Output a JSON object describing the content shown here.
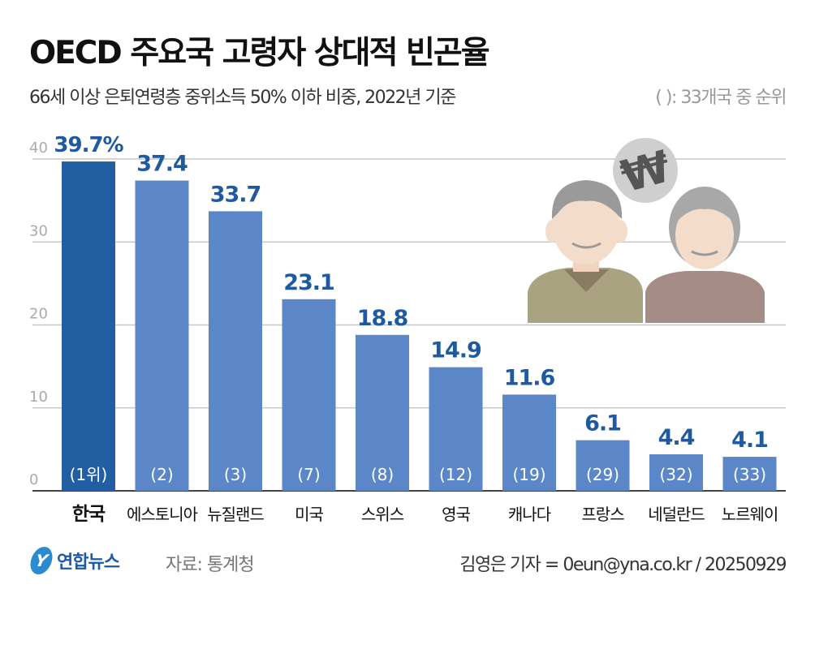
{
  "header": {
    "title": "OECD 주요국 고령자 상대적 빈곤율",
    "subtitle": "66세 이상 은퇴연령층 중위소득 50% 이하 비중, 2022년 기준",
    "note": "( ): 33개국 중 순위"
  },
  "footer": {
    "logo_text": "연합뉴스",
    "logo_letter": "Y",
    "source": "자료: 통계청",
    "credit": "김영은 기자 = 0eun@yna.co.kr / 20250929"
  },
  "illustration": {
    "coin_symbol": "₩"
  },
  "chart_data": {
    "type": "bar",
    "categories": [
      "한국",
      "에스토니아",
      "뉴질랜드",
      "미국",
      "스위스",
      "영국",
      "캐나다",
      "프랑스",
      "네덜란드",
      "노르웨이"
    ],
    "values": [
      39.7,
      37.4,
      33.7,
      23.1,
      18.8,
      14.9,
      11.6,
      6.1,
      4.4,
      4.1
    ],
    "value_labels": [
      "39.7%",
      "37.4",
      "33.7",
      "23.1",
      "18.8",
      "14.9",
      "11.6",
      "6.1",
      "4.4",
      "4.1"
    ],
    "ranks": [
      "(1위)",
      "(2)",
      "(3)",
      "(7)",
      "(8)",
      "(12)",
      "(19)",
      "(29)",
      "(32)",
      "(33)"
    ],
    "highlight_index": 0,
    "ylim": [
      0,
      40
    ],
    "yticks": [
      0,
      10,
      20,
      30,
      40
    ],
    "grid": true,
    "colors": {
      "highlight": "#225ea2",
      "bar": "#5b87c8",
      "label": "#1f5aa0",
      "grid": "#c8c8c8"
    }
  }
}
